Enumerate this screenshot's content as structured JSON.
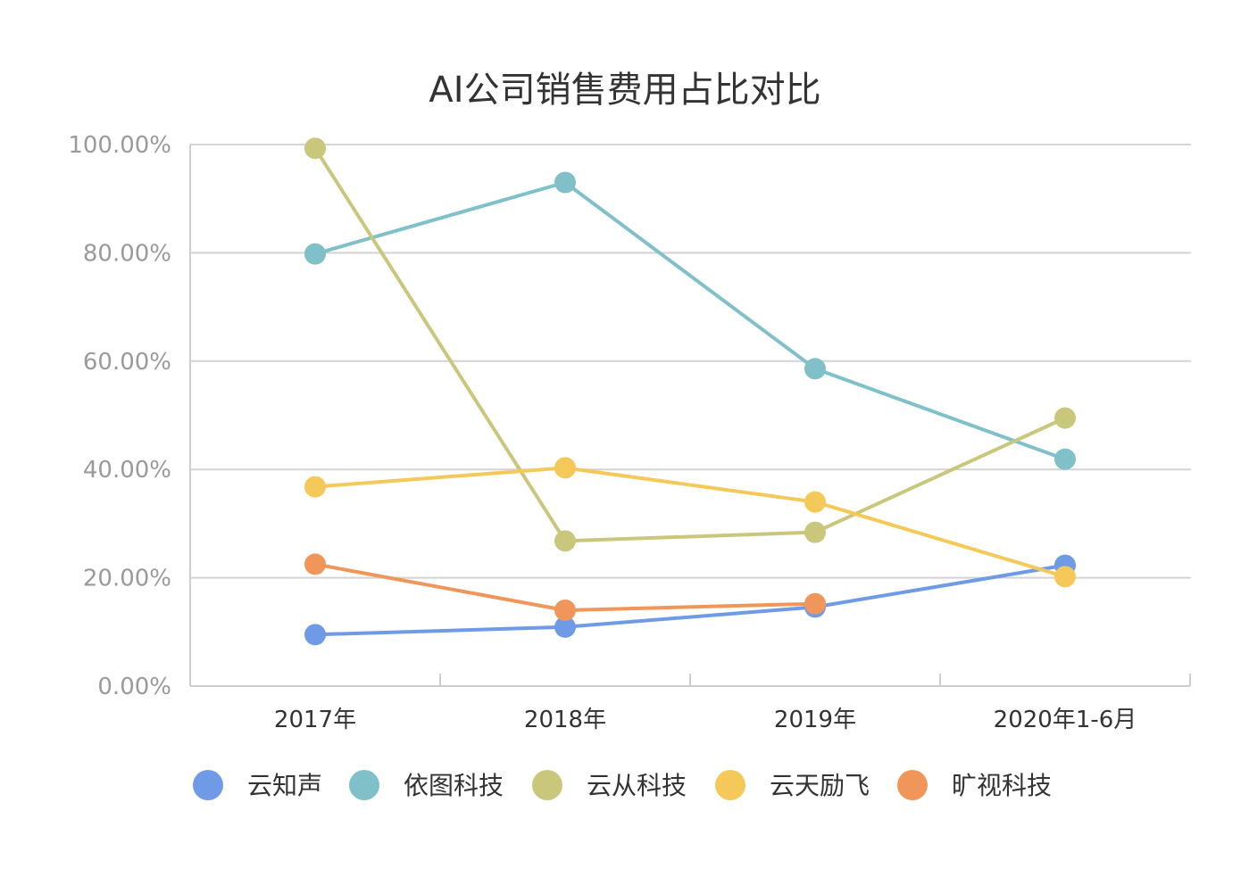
{
  "chart_data": {
    "type": "line",
    "title": "AI公司销售费用占比对比",
    "xlabel": "",
    "ylabel": "",
    "categories": [
      "2017年",
      "2018年",
      "2019年",
      "2020年1-6月"
    ],
    "y_ticks": [
      "0.00%",
      "20.00%",
      "40.00%",
      "60.00%",
      "80.00%",
      "100.00%"
    ],
    "ylim": [
      0,
      100
    ],
    "grid": true,
    "legend_position": "bottom",
    "series": [
      {
        "name": "云知声",
        "color": "#6f9ae5",
        "values": [
          9.5,
          10.9,
          14.6,
          22.3
        ]
      },
      {
        "name": "依图科技",
        "color": "#80c0c8",
        "values": [
          79.8,
          93.0,
          58.6,
          41.9
        ]
      },
      {
        "name": "云从科技",
        "color": "#c8c77c",
        "values": [
          99.3,
          26.8,
          28.4,
          49.5
        ]
      },
      {
        "name": "云天励飞",
        "color": "#f4c95a",
        "values": [
          36.8,
          40.3,
          34.0,
          20.2
        ]
      },
      {
        "name": "旷视科技",
        "color": "#f0965a",
        "values": [
          22.5,
          14.0,
          15.2,
          null
        ]
      }
    ]
  }
}
